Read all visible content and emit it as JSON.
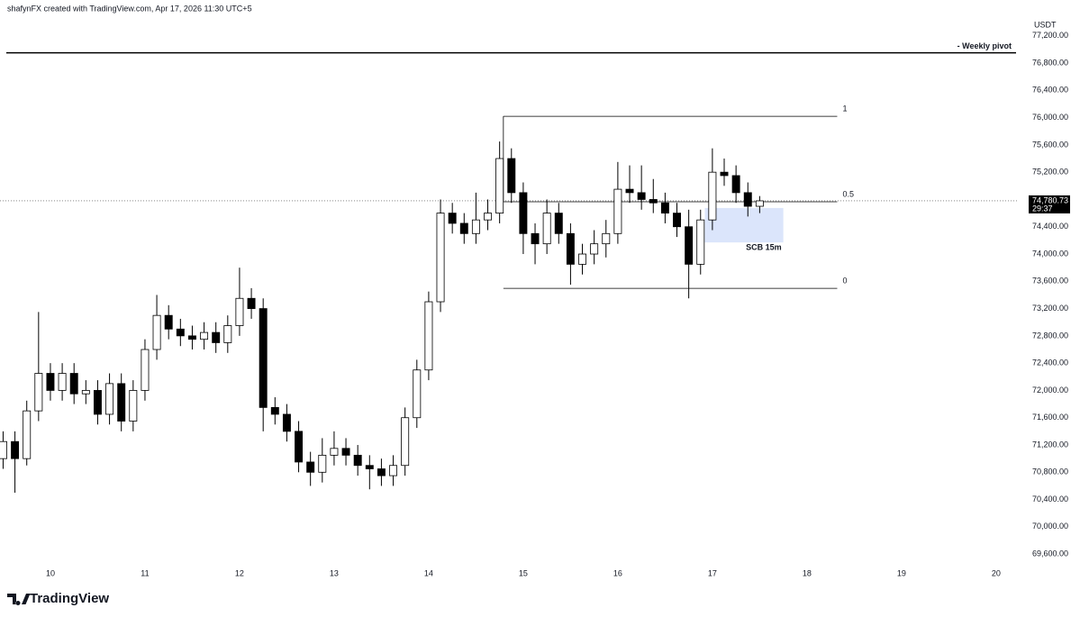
{
  "header": {
    "text": "shafynFX created with TradingView.com, Apr 17, 2026 11:30 UTC+5"
  },
  "chart_data": {
    "type": "candlestick",
    "currency": "USDT",
    "up_color": "#ffffff",
    "down_color": "#000000",
    "x": [
      9.5,
      9.625,
      9.75,
      9.875,
      10.0,
      10.125,
      10.25,
      10.375,
      10.5,
      10.625,
      10.75,
      10.875,
      11.0,
      11.125,
      11.25,
      11.375,
      11.5,
      11.625,
      11.75,
      11.875,
      12.0,
      12.125,
      12.25,
      12.375,
      12.5,
      12.625,
      12.75,
      12.875,
      13.0,
      13.125,
      13.25,
      13.375,
      13.5,
      13.625,
      13.75,
      13.875,
      14.0,
      14.125,
      14.25,
      14.375,
      14.5,
      14.625,
      14.75,
      14.875,
      15.0,
      15.125,
      15.25,
      15.375,
      15.5,
      15.625,
      15.75,
      15.875,
      16.0,
      16.125,
      16.25,
      16.375,
      16.5,
      16.625,
      16.75,
      16.875,
      17.0,
      17.125,
      17.25,
      17.375,
      17.5
    ],
    "open": [
      71000,
      71250,
      71000,
      71700,
      72250,
      72000,
      72250,
      71950,
      72000,
      71650,
      72100,
      71550,
      72000,
      72600,
      73100,
      72900,
      72800,
      72750,
      72850,
      72700,
      72950,
      73350,
      73200,
      71750,
      71650,
      71400,
      70950,
      70800,
      71050,
      71150,
      71050,
      70900,
      70850,
      70750,
      70900,
      71600,
      72300,
      73300,
      74600,
      74450,
      74300,
      74500,
      74600,
      75400,
      74900,
      74300,
      74150,
      74600,
      74300,
      73850,
      74000,
      74150,
      74300,
      74950,
      74900,
      74800,
      74750,
      74600,
      74400,
      73850,
      74500,
      75200,
      75150,
      74900,
      74700
    ],
    "high": [
      71400,
      71400,
      71850,
      73150,
      72400,
      72400,
      72400,
      72150,
      72150,
      72250,
      72250,
      72150,
      72750,
      73400,
      73250,
      73050,
      72950,
      73000,
      73000,
      73100,
      73800,
      73500,
      73350,
      71900,
      71800,
      71550,
      71100,
      71300,
      71400,
      71300,
      71200,
      71050,
      71000,
      71050,
      71750,
      72450,
      73450,
      74800,
      74750,
      74600,
      74900,
      74800,
      75650,
      75550,
      75050,
      74450,
      74800,
      74750,
      74450,
      74150,
      74350,
      74500,
      75350,
      75300,
      75300,
      75100,
      74900,
      74750,
      74650,
      74650,
      75550,
      75400,
      75300,
      75050,
      74850
    ],
    "low": [
      70850,
      70500,
      70900,
      71550,
      71850,
      71850,
      71800,
      71800,
      71500,
      71500,
      71400,
      71400,
      71850,
      72450,
      72750,
      72650,
      72600,
      72600,
      72550,
      72550,
      72800,
      73050,
      71400,
      71500,
      71250,
      70800,
      70600,
      70650,
      70900,
      70900,
      70750,
      70550,
      70600,
      70600,
      70750,
      71450,
      72150,
      73150,
      74300,
      74150,
      74150,
      74350,
      74450,
      74750,
      74000,
      73850,
      74000,
      74150,
      73550,
      73700,
      73850,
      73950,
      74150,
      74750,
      74650,
      74600,
      74450,
      74250,
      73350,
      73700,
      74350,
      75000,
      74750,
      74550,
      74600
    ],
    "close": [
      71250,
      71000,
      71700,
      72250,
      72000,
      72250,
      71950,
      72000,
      71650,
      72100,
      71550,
      72000,
      72600,
      73100,
      72900,
      72800,
      72750,
      72850,
      72700,
      72950,
      73350,
      73200,
      71750,
      71650,
      71400,
      70950,
      70800,
      71050,
      71150,
      71050,
      70900,
      70850,
      70750,
      70900,
      71600,
      72300,
      73300,
      74600,
      74450,
      74300,
      74500,
      74600,
      75400,
      74900,
      74300,
      74150,
      74600,
      74300,
      73850,
      74000,
      74150,
      74300,
      74950,
      74900,
      74800,
      74750,
      74600,
      74400,
      73850,
      74500,
      75200,
      75150,
      74900,
      74700,
      74780
    ],
    "xlim": [
      9.467,
      20.23
    ],
    "xticks": [
      10,
      11,
      12,
      13,
      14,
      15,
      16,
      17,
      18,
      19,
      20
    ],
    "ylim": [
      69470,
      77725
    ],
    "yticks": [
      {
        "value": 69600,
        "label": "69,600.00"
      },
      {
        "value": 70000,
        "label": "70,000.00"
      },
      {
        "value": 70400,
        "label": "70,400.00"
      },
      {
        "value": 70800,
        "label": "70,800.00"
      },
      {
        "value": 71200,
        "label": "71,200.00"
      },
      {
        "value": 71600,
        "label": "71,600.00"
      },
      {
        "value": 72000,
        "label": "72,000.00"
      },
      {
        "value": 72400,
        "label": "72,400.00"
      },
      {
        "value": 72800,
        "label": "72,800.00"
      },
      {
        "value": 73200,
        "label": "73,200.00"
      },
      {
        "value": 73600,
        "label": "73,600.00"
      },
      {
        "value": 74000,
        "label": "74,000.00"
      },
      {
        "value": 74400,
        "label": "74,400.00"
      },
      {
        "value": 74800,
        "label": "74,800.00"
      },
      {
        "value": 75200,
        "label": "75,200.00"
      },
      {
        "value": 75600,
        "label": "75,600.00"
      },
      {
        "value": 76000,
        "label": "76,000.00"
      },
      {
        "value": 76400,
        "label": "76,400.00"
      },
      {
        "value": 76800,
        "label": "76,800.00"
      },
      {
        "value": 77200,
        "label": "77,200.00"
      }
    ],
    "last_price": {
      "value": 74780.73,
      "label": "74,780.73"
    },
    "countdown": "29:37",
    "weekly_pivot": {
      "value": 76950,
      "label": "- Weekly pivot"
    },
    "fib": {
      "x": [
        14.79,
        18.32
      ],
      "levels": [
        {
          "value": 76020,
          "label": "1"
        },
        {
          "value": 74766,
          "label": "0.5"
        },
        {
          "value": 73497,
          "label": "0"
        }
      ]
    },
    "zone": {
      "label": "SCB 15m",
      "x": [
        16.92,
        17.75
      ],
      "y": [
        74675,
        74170
      ],
      "color": "#dbe5fb"
    }
  },
  "footer": {
    "brand": "TradingView"
  }
}
